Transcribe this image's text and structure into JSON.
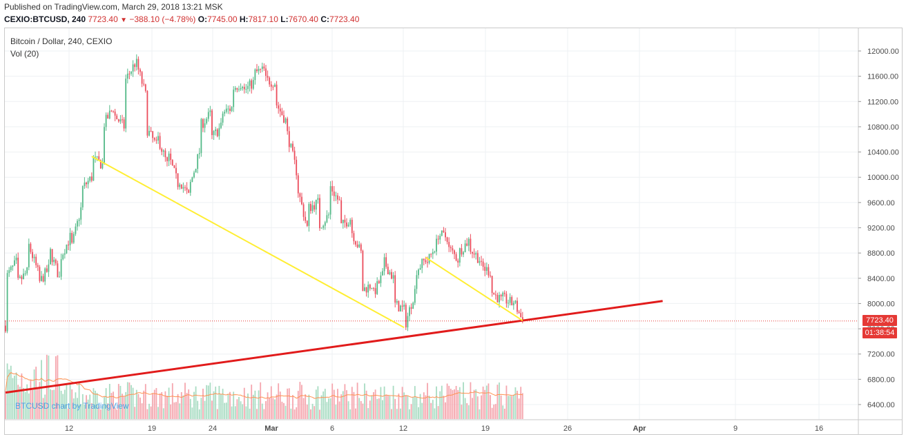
{
  "publication": "Published on TradingView.com, March 29, 2018 13:21 MSK",
  "quote": {
    "symbol": "CEXIO:BTCUSD, 240",
    "last": "7723.40",
    "change": "−388.10 (−4.78%)",
    "open_label": "O:",
    "open": "7745.00",
    "high_label": "H:",
    "high": "7817.10",
    "low_label": "L:",
    "low": "7670.40",
    "close_label": "C:",
    "close": "7723.40"
  },
  "legend": {
    "main": "Bitcoin / Dollar, 240, CEXIO",
    "volume": "Vol (20)"
  },
  "watermark": "BTCUSD chart by TradingView",
  "price_tag": "7723.40",
  "countdown_tag": "01:38:54",
  "colors": {
    "up": "#53b987",
    "down": "#eb4d5c",
    "support_line": "#e11b1b",
    "trendline": "#ffee33",
    "vol_up": "#a9dcc3",
    "vol_down": "#f5a6ae",
    "vol_ma": "#ff9150"
  },
  "chart_data": {
    "type": "candlestick",
    "title": "Bitcoin / Dollar, 240, CEXIO",
    "y_axis_ticks": [
      6400,
      6800,
      7200,
      7600,
      8000,
      8400,
      8800,
      9200,
      9600,
      10000,
      10400,
      10800,
      11200,
      11600,
      12000
    ],
    "ylim": [
      6200,
      12150
    ],
    "x_tick_labels": [
      "12",
      "19",
      "24",
      "Mar",
      "6",
      "12",
      "19",
      "26",
      "Apr",
      "9",
      "16"
    ],
    "last_price": 7723.4,
    "grid": true,
    "price_path": [
      [
        "Feb 9",
        7650
      ],
      [
        "Feb 9",
        8400
      ],
      [
        "Feb 10",
        8650
      ],
      [
        "Feb 10",
        8300
      ],
      [
        "Feb 11",
        8500
      ],
      [
        "Feb 11",
        9000
      ],
      [
        "Feb 12",
        8500
      ],
      [
        "Feb 12",
        8300
      ],
      [
        "Feb 13",
        8550
      ],
      [
        "Feb 13",
        8900
      ],
      [
        "Feb 14",
        8400
      ],
      [
        "Feb 14",
        8700
      ],
      [
        "Feb 15",
        9050
      ],
      [
        "Feb 15",
        8800
      ],
      [
        "Feb 16",
        9500
      ],
      [
        "Feb 16",
        9800
      ],
      [
        "Feb 17",
        10000
      ],
      [
        "Feb 17",
        10300
      ],
      [
        "Feb 18",
        10200
      ],
      [
        "Feb 18",
        10800
      ],
      [
        "Feb 19",
        11100
      ],
      [
        "Feb 19",
        11000
      ],
      [
        "Feb 20",
        10800
      ],
      [
        "Feb 20",
        11500
      ],
      [
        "Feb 21",
        11800
      ],
      [
        "Feb 21",
        11900
      ],
      [
        "Feb 22",
        11300
      ],
      [
        "Feb 22",
        10800
      ],
      [
        "Feb 23",
        10500
      ],
      [
        "Feb 23",
        10700
      ],
      [
        "Feb 24",
        10200
      ],
      [
        "Feb 24",
        10400
      ],
      [
        "Feb 25",
        9900
      ],
      [
        "Feb 25",
        10000
      ],
      [
        "Feb 26",
        9700
      ],
      [
        "Feb 26",
        9800
      ],
      [
        "Feb 27",
        10400
      ],
      [
        "Feb 27",
        10800
      ],
      [
        "Feb 28",
        11000
      ],
      [
        "Feb 28",
        10600
      ],
      [
        "Mar 1",
        10800
      ],
      [
        "Mar 1",
        11000
      ],
      [
        "Mar 2",
        11100
      ],
      [
        "Mar 2",
        11400
      ],
      [
        "Mar 3",
        11500
      ],
      [
        "Mar 3",
        11350
      ],
      [
        "Mar 4",
        11500
      ],
      [
        "Mar 4",
        11650
      ],
      [
        "Mar 5",
        11700
      ],
      [
        "Mar 5",
        11550
      ],
      [
        "Mar 6",
        11500
      ],
      [
        "Mar 6",
        11200
      ],
      [
        "Mar 7",
        10900
      ],
      [
        "Mar 7",
        10800
      ],
      [
        "Mar 8",
        10100
      ],
      [
        "Mar 8",
        9900
      ],
      [
        "Mar 9",
        9200
      ],
      [
        "Mar 9",
        9500
      ],
      [
        "Mar 10",
        9600
      ],
      [
        "Mar 10",
        9200
      ],
      [
        "Mar 11",
        9400
      ],
      [
        "Mar 11",
        9900
      ],
      [
        "Mar 12",
        9600
      ],
      [
        "Mar 12",
        9200
      ],
      [
        "Mar 13",
        9350
      ],
      [
        "Mar 13",
        9200
      ],
      [
        "Mar 14",
        8800
      ],
      [
        "Mar 14",
        8200
      ],
      [
        "Mar 15",
        8300
      ],
      [
        "Mar 15",
        8100
      ],
      [
        "Mar 16",
        8450
      ],
      [
        "Mar 16",
        8700
      ],
      [
        "Mar 17",
        8400
      ],
      [
        "Mar 17",
        8000
      ],
      [
        "Mar 18",
        7900
      ],
      [
        "Mar 18",
        7600
      ],
      [
        "Mar 19",
        8200
      ],
      [
        "Mar 19",
        8500
      ],
      [
        "Mar 20",
        8700
      ],
      [
        "Mar 20",
        8600
      ],
      [
        "Mar 21",
        8950
      ],
      [
        "Mar 21",
        9100
      ],
      [
        "Mar 22",
        9050
      ],
      [
        "Mar 22",
        8900
      ],
      [
        "Mar 23",
        8700
      ],
      [
        "Mar 23",
        8800
      ],
      [
        "Mar 24",
        9000
      ],
      [
        "Mar 24",
        8900
      ],
      [
        "Mar 25",
        8700
      ],
      [
        "Mar 25",
        8600
      ],
      [
        "Mar 26",
        8500
      ],
      [
        "Mar 26",
        8200
      ],
      [
        "Mar 27",
        8050
      ],
      [
        "Mar 27",
        8100
      ],
      [
        "Mar 28",
        8000
      ],
      [
        "Mar 28",
        8100
      ],
      [
        "Mar 29",
        7723
      ]
    ],
    "drawn_lines": [
      {
        "name": "support",
        "color": "#e11b1b",
        "from": [
          "Feb 9",
          6590
        ],
        "to": [
          "Apr 11",
          8040
        ]
      },
      {
        "name": "trend-1",
        "color": "#ffee33",
        "from": [
          "Feb 17",
          10330
        ],
        "to": [
          "Mar 18",
          7620
        ]
      },
      {
        "name": "trend-2",
        "color": "#ffee33",
        "from": [
          "Mar 20",
          8730
        ],
        "to": [
          "Mar 29",
          7730
        ]
      }
    ]
  }
}
